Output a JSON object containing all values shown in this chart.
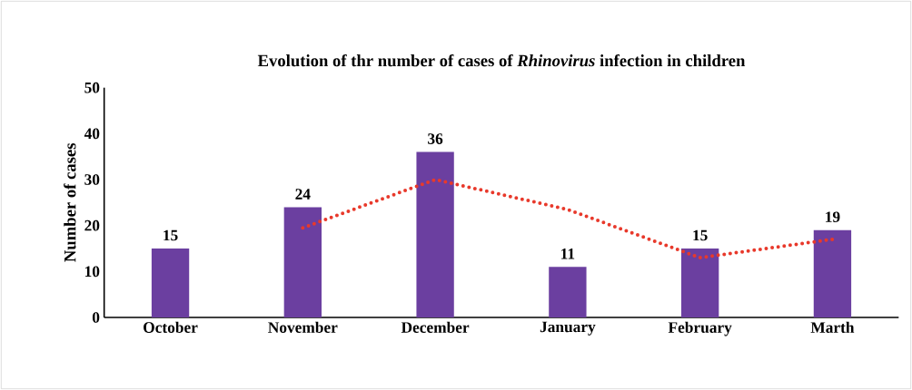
{
  "chart_data": {
    "type": "bar",
    "title": "Evolution of thr number of cases of *Rhinovirus* infection in children",
    "ylabel": "Number of cases",
    "categories": [
      "October",
      "November",
      "December",
      "January",
      "February",
      "Marth"
    ],
    "series": [
      {
        "color": "#6b3fa0",
        "values": [
          15,
          24,
          36,
          11,
          15,
          19
        ],
        "value_labels": [
          "15",
          "24",
          "36",
          "11",
          "15",
          "19"
        ]
      },
      {
        "type": "line",
        "color": "#e8392b",
        "line_style": "dotted",
        "marker": "none",
        "values": [
          null,
          19.5,
          30,
          23.5,
          13,
          17
        ]
      }
    ],
    "ylim": [
      0,
      50
    ],
    "yticks": [
      0,
      10,
      20,
      30,
      40,
      50
    ],
    "grid": false
  }
}
